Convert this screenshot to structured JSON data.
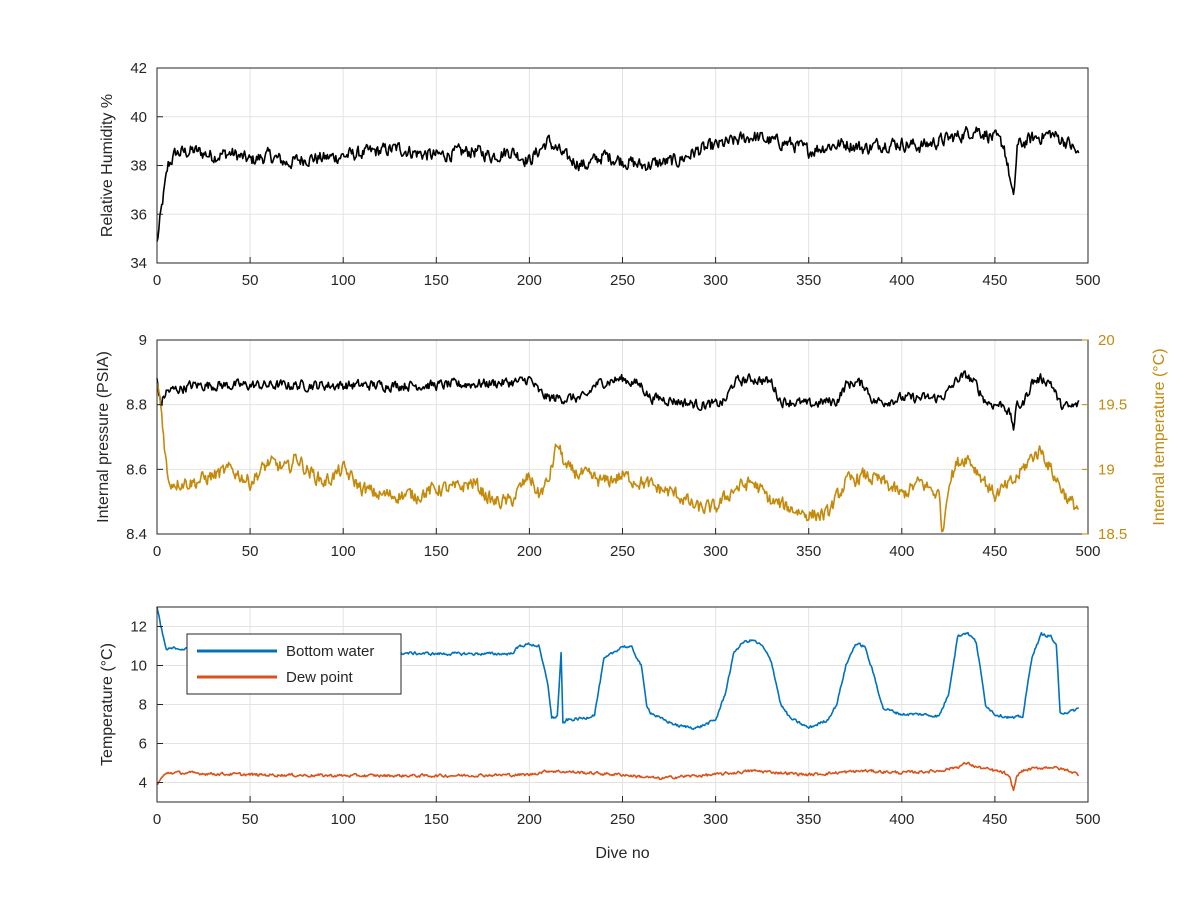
{
  "chart_data": [
    {
      "type": "line",
      "id": "humidity",
      "ylabel": "Relative Humidity %",
      "xlabel": "",
      "xlim": [
        0,
        500
      ],
      "ylim": [
        34,
        42
      ],
      "xticks": [
        "0",
        "50",
        "100",
        "150",
        "200",
        "250",
        "300",
        "350",
        "400",
        "450",
        "500"
      ],
      "yticks": [
        "34",
        "36",
        "38",
        "40",
        "42"
      ],
      "grid": true,
      "series": [
        {
          "color": "#000000",
          "x": [
            0,
            3,
            6,
            10,
            20,
            30,
            40,
            50,
            60,
            70,
            80,
            90,
            100,
            110,
            120,
            130,
            140,
            150,
            160,
            170,
            180,
            190,
            200,
            210,
            220,
            230,
            240,
            250,
            260,
            270,
            280,
            290,
            300,
            310,
            320,
            330,
            340,
            350,
            360,
            370,
            380,
            390,
            400,
            410,
            420,
            430,
            440,
            450,
            455,
            458,
            460,
            462,
            470,
            480,
            490,
            495
          ],
          "y": [
            34.8,
            36.5,
            38.0,
            38.5,
            38.6,
            38.4,
            38.5,
            38.2,
            38.4,
            38.1,
            38.3,
            38.3,
            38.4,
            38.5,
            38.6,
            38.7,
            38.5,
            38.4,
            38.5,
            38.6,
            38.4,
            38.6,
            38.2,
            39.0,
            38.3,
            38.0,
            38.4,
            38.2,
            38.0,
            38.1,
            38.2,
            38.6,
            38.8,
            39.0,
            39.2,
            39.0,
            38.9,
            38.6,
            38.8,
            38.9,
            38.7,
            38.9,
            38.9,
            38.8,
            39.0,
            39.2,
            39.5,
            39.1,
            38.8,
            37.5,
            36.5,
            38.8,
            39.1,
            39.3,
            38.9,
            38.4
          ],
          "noise": 0.45
        }
      ]
    },
    {
      "type": "line",
      "id": "pressure-temperature",
      "xlabel": "",
      "xlim": [
        0,
        500
      ],
      "ylabel": "Internal pressure (PSIA)",
      "ylim": [
        8.4,
        9
      ],
      "yticks": [
        "8.4",
        "8.6",
        "8.8",
        "9"
      ],
      "y2label": "Internal temperature (°C)",
      "y2lim": [
        18.5,
        20
      ],
      "y2ticks": [
        "18.5",
        "19",
        "19.5",
        "20"
      ],
      "xticks": [
        "0",
        "50",
        "100",
        "150",
        "200",
        "250",
        "300",
        "350",
        "400",
        "450",
        "500"
      ],
      "grid": true,
      "series": [
        {
          "color": "#000000",
          "axis": "left",
          "x": [
            0,
            2,
            5,
            20,
            50,
            100,
            150,
            195,
            200,
            205,
            210,
            215,
            230,
            235,
            240,
            250,
            260,
            265,
            270,
            290,
            300,
            305,
            310,
            320,
            330,
            335,
            340,
            350,
            360,
            365,
            370,
            375,
            380,
            385,
            390,
            400,
            410,
            420,
            425,
            430,
            435,
            440,
            445,
            450,
            455,
            458,
            460,
            462,
            465,
            470,
            475,
            480,
            485,
            490,
            495
          ],
          "y": [
            8.88,
            8.8,
            8.84,
            8.86,
            8.86,
            8.86,
            8.86,
            8.87,
            8.88,
            8.84,
            8.82,
            8.82,
            8.82,
            8.86,
            8.87,
            8.88,
            8.86,
            8.82,
            8.82,
            8.8,
            8.8,
            8.81,
            8.87,
            8.88,
            8.87,
            8.81,
            8.81,
            8.8,
            8.81,
            8.81,
            8.86,
            8.87,
            8.86,
            8.81,
            8.81,
            8.82,
            8.82,
            8.82,
            8.84,
            8.88,
            8.89,
            8.86,
            8.81,
            8.8,
            8.8,
            8.77,
            8.73,
            8.8,
            8.8,
            8.87,
            8.88,
            8.87,
            8.8,
            8.79,
            8.8
          ],
          "noise": 0.025
        },
        {
          "color": "#C48A0B",
          "axis": "right",
          "x": [
            0,
            2,
            4,
            6,
            10,
            20,
            30,
            40,
            50,
            60,
            70,
            75,
            80,
            90,
            100,
            110,
            120,
            130,
            140,
            150,
            160,
            170,
            180,
            190,
            200,
            205,
            210,
            215,
            220,
            230,
            240,
            250,
            260,
            270,
            280,
            290,
            300,
            310,
            320,
            330,
            340,
            350,
            360,
            370,
            380,
            390,
            400,
            410,
            420,
            422,
            425,
            430,
            435,
            440,
            450,
            460,
            470,
            475,
            480,
            490,
            495
          ],
          "y": [
            19.7,
            19.5,
            19.2,
            18.9,
            18.9,
            18.9,
            18.95,
            19.0,
            18.9,
            19.05,
            19.0,
            19.1,
            19.0,
            18.9,
            19.0,
            18.85,
            18.8,
            18.8,
            18.8,
            18.85,
            18.85,
            18.9,
            18.75,
            18.75,
            18.95,
            18.8,
            18.9,
            19.2,
            19.0,
            18.95,
            18.9,
            18.95,
            18.9,
            18.85,
            18.8,
            18.7,
            18.7,
            18.85,
            18.9,
            18.75,
            18.7,
            18.65,
            18.65,
            18.9,
            18.95,
            18.9,
            18.8,
            18.9,
            18.8,
            18.5,
            18.9,
            19.05,
            19.1,
            19.0,
            18.8,
            18.9,
            19.1,
            19.15,
            19.0,
            18.75,
            18.7
          ],
          "noise": 0.09
        }
      ]
    },
    {
      "type": "line",
      "id": "temperature",
      "xlabel": "Dive no",
      "ylabel": "Temperature (°C)",
      "xlim": [
        0,
        500
      ],
      "ylim": [
        3,
        13
      ],
      "yticks": [
        "4",
        "6",
        "8",
        "10",
        "12"
      ],
      "xticks": [
        "0",
        "50",
        "100",
        "150",
        "200",
        "250",
        "300",
        "350",
        "400",
        "450",
        "500"
      ],
      "grid": true,
      "legend": {
        "position": "top-left",
        "entries": [
          {
            "label": "Bottom water",
            "color": "#0072BD"
          },
          {
            "label": "Dew point",
            "color": "#D95319"
          }
        ]
      },
      "series": [
        {
          "name": "Bottom water",
          "color": "#0072BD",
          "x": [
            0,
            2,
            5,
            10,
            20,
            50,
            100,
            150,
            190,
            195,
            200,
            205,
            210,
            212,
            215,
            217,
            218,
            220,
            230,
            235,
            240,
            250,
            255,
            260,
            263,
            265,
            270,
            280,
            290,
            300,
            305,
            310,
            315,
            320,
            325,
            330,
            335,
            340,
            350,
            360,
            365,
            370,
            375,
            380,
            385,
            390,
            400,
            410,
            420,
            425,
            430,
            435,
            440,
            445,
            450,
            460,
            465,
            470,
            475,
            480,
            483,
            485,
            490,
            495
          ],
          "y": [
            13.0,
            12.0,
            10.8,
            10.9,
            10.8,
            10.8,
            10.7,
            10.6,
            10.6,
            11.0,
            11.1,
            11.0,
            9.0,
            7.3,
            7.4,
            10.6,
            7.0,
            7.2,
            7.3,
            7.5,
            10.3,
            11.0,
            10.9,
            10.0,
            8.0,
            7.6,
            7.3,
            6.9,
            6.8,
            7.2,
            8.5,
            10.7,
            11.2,
            11.3,
            11.0,
            10.2,
            8.0,
            7.3,
            6.8,
            7.2,
            8.0,
            10.0,
            11.1,
            11.0,
            9.5,
            7.8,
            7.5,
            7.5,
            7.4,
            8.5,
            11.5,
            11.7,
            11.2,
            8.0,
            7.5,
            7.3,
            7.4,
            10.5,
            11.6,
            11.5,
            11.0,
            7.6,
            7.6,
            7.8
          ],
          "noise": 0.12
        },
        {
          "name": "Dew point",
          "color": "#D95319",
          "x": [
            0,
            3,
            6,
            10,
            50,
            100,
            150,
            200,
            210,
            250,
            270,
            280,
            300,
            320,
            350,
            380,
            400,
            420,
            430,
            435,
            440,
            450,
            455,
            458,
            460,
            462,
            465,
            470,
            480,
            490,
            495
          ],
          "y": [
            3.9,
            4.3,
            4.5,
            4.5,
            4.4,
            4.35,
            4.35,
            4.4,
            4.6,
            4.4,
            4.2,
            4.3,
            4.4,
            4.6,
            4.4,
            4.6,
            4.5,
            4.6,
            4.8,
            5.0,
            4.8,
            4.6,
            4.5,
            4.2,
            3.6,
            4.4,
            4.6,
            4.7,
            4.8,
            4.6,
            4.4
          ],
          "noise": 0.12
        }
      ]
    }
  ]
}
